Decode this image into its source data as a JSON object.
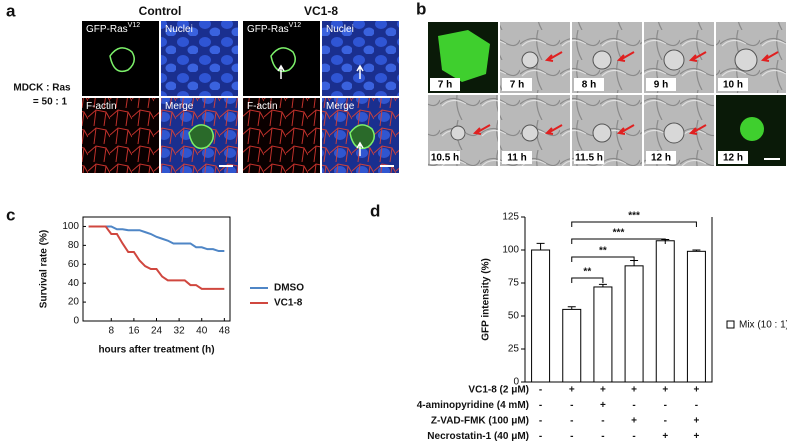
{
  "panel_a": {
    "label": "a",
    "row_label": [
      "MDCK : Ras",
      "= 50 : 1"
    ],
    "groups": [
      "Control",
      "VC1-8"
    ],
    "images": [
      {
        "label": "GFP-Ras",
        "superscript": "V12"
      },
      {
        "label": "Nuclei"
      },
      {
        "label": "F-actin"
      },
      {
        "label": "Merge"
      }
    ]
  },
  "panel_b": {
    "label": "b",
    "times": [
      "7 h",
      "7 h",
      "8 h",
      "9 h",
      "10 h",
      "10.5 h",
      "11 h",
      "11.5 h",
      "12 h",
      "12 h"
    ]
  },
  "chart_data": [
    {
      "type": "line",
      "panel": "c",
      "xlabel": "hours after treatment (h)",
      "ylabel": "Survival rate (%)",
      "x": [
        0,
        2,
        4,
        6,
        8,
        10,
        12,
        14,
        16,
        18,
        20,
        22,
        24,
        26,
        28,
        30,
        32,
        34,
        36,
        38,
        40,
        42,
        44,
        46,
        48
      ],
      "series": [
        {
          "name": "DMSO",
          "color": "#4f86c6",
          "values": [
            100,
            100,
            100,
            100,
            100,
            97,
            97,
            96,
            96,
            96,
            94,
            92,
            89,
            87,
            85,
            82,
            82,
            82,
            82,
            78,
            78,
            76,
            76,
            74,
            74
          ]
        },
        {
          "name": "VC1-8",
          "color": "#d0473f",
          "values": [
            100,
            100,
            100,
            100,
            92,
            92,
            82,
            73,
            73,
            64,
            58,
            55,
            55,
            47,
            43,
            43,
            43,
            43,
            38,
            38,
            34,
            34,
            34,
            34,
            34
          ]
        }
      ],
      "xlim": [
        -2,
        50
      ],
      "xticks": [
        8,
        16,
        24,
        32,
        40,
        48
      ],
      "ylim": [
        0,
        110
      ],
      "yticks": [
        0,
        20,
        40,
        60,
        80,
        100
      ],
      "legend": "right"
    },
    {
      "type": "bar",
      "panel": "d",
      "ylabel": "GFP intensity (%)",
      "categories": [
        null,
        null,
        null,
        null,
        null,
        null
      ],
      "series": [
        {
          "name": "Mix (10 : 1)",
          "color": "#ffffff",
          "values": [
            100,
            55,
            72,
            88,
            107,
            99
          ],
          "errors": [
            5,
            2,
            2,
            4,
            1,
            1
          ]
        }
      ],
      "ylim": [
        0,
        125
      ],
      "yticks": [
        0,
        25,
        50,
        75,
        100,
        125
      ],
      "significance": [
        "***",
        "***",
        "**",
        "**"
      ],
      "conditions": [
        {
          "label": "VC1-8 (2 μM)",
          "signs": [
            "-",
            "+",
            "+",
            "+",
            "+",
            "+"
          ]
        },
        {
          "label": "4-aminopyridine (4 mM)",
          "signs": [
            "-",
            "-",
            "+",
            "-",
            "-",
            "-"
          ]
        },
        {
          "label": "Z-VAD-FMK (100 μM)",
          "signs": [
            "-",
            "-",
            "-",
            "+",
            "-",
            "+"
          ]
        },
        {
          "label": "Necrostatin-1 (40 μM)",
          "signs": [
            "-",
            "-",
            "-",
            "-",
            "+",
            "+"
          ]
        }
      ],
      "legend": "right"
    }
  ]
}
